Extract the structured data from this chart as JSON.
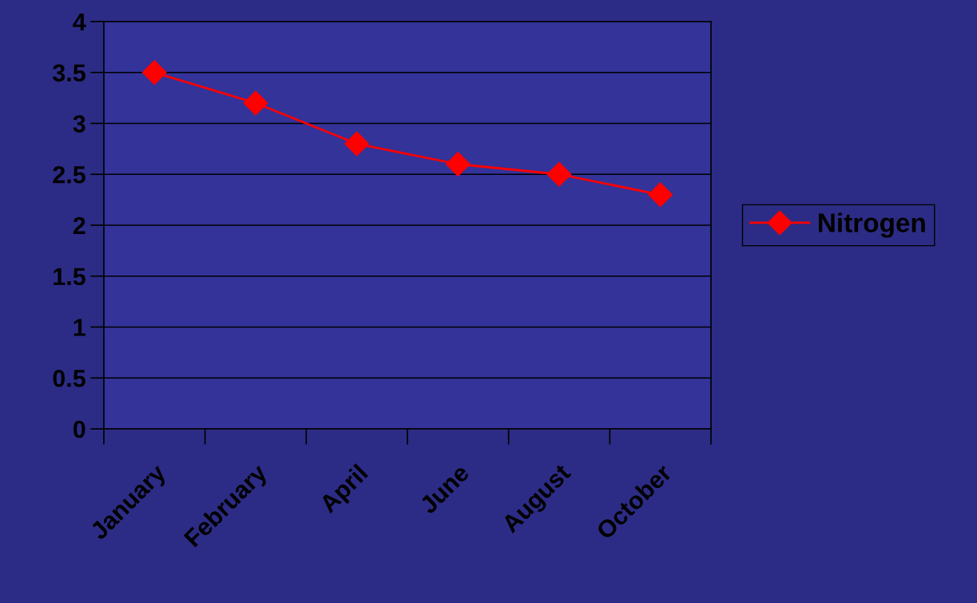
{
  "chart_data": {
    "type": "line",
    "categories": [
      "January",
      "February",
      "April",
      "June",
      "August",
      "October"
    ],
    "series": [
      {
        "name": "Nitrogen",
        "color": "#ff0000",
        "values": [
          3.5,
          3.2,
          2.8,
          2.6,
          2.5,
          2.3
        ]
      }
    ],
    "ylim": [
      0,
      4
    ],
    "yticks": [
      0,
      0.5,
      1,
      1.5,
      2,
      2.5,
      3,
      3.5,
      4
    ],
    "grid": "y",
    "legend": "right",
    "marker": "diamond",
    "line_style": "solid"
  }
}
